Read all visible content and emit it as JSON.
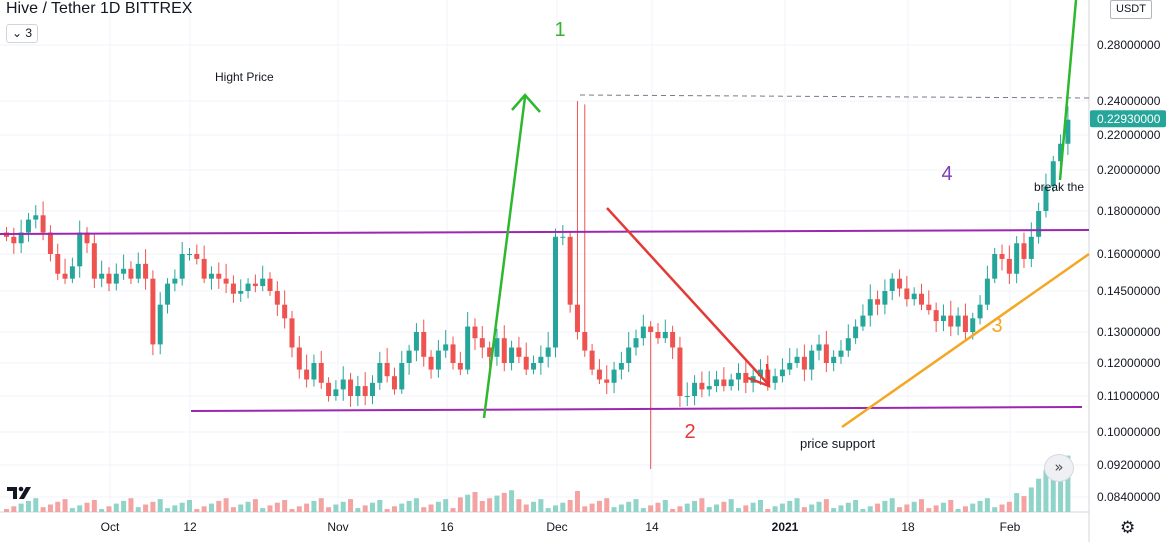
{
  "header": {
    "title": "Hive / Tether  1D  BITTREX",
    "interval_label": "⌄ 3",
    "currency": "USDT"
  },
  "chart_data": {
    "type": "candlestick",
    "price_axis": {
      "ticks": [
        "0.28000000",
        "0.24000000",
        "0.22000000",
        "0.20000000",
        "0.18000000",
        "0.16000000",
        "0.14500000",
        "0.13000000",
        "0.12000000",
        "0.11000000",
        "0.10000000",
        "0.09200000",
        "0.08400000"
      ],
      "last_price_label": "0.22930000"
    },
    "time_axis": {
      "ticks": [
        "Oct",
        "12",
        "Nov",
        "16",
        "Dec",
        "14",
        "2021",
        "18",
        "Feb"
      ]
    },
    "annotations": {
      "wave_1": "1",
      "wave_2": "2",
      "wave_3": "3",
      "wave_4": "4",
      "high_price": "Hight Price",
      "price_support": "price support",
      "break": "break the"
    },
    "colors": {
      "up": "#26a69a",
      "down": "#ef5350",
      "up_volume": "#8fd3c9",
      "down_volume": "#f4a3a3",
      "channel": "#9c27b0",
      "green_arrow": "#2eb82e",
      "red_arrow": "#e53935",
      "orange_line": "#f5a623",
      "wave1": "#32b432",
      "wave2": "#e53935",
      "wave3": "#f5a623",
      "wave4": "#7b3fb5"
    }
  }
}
